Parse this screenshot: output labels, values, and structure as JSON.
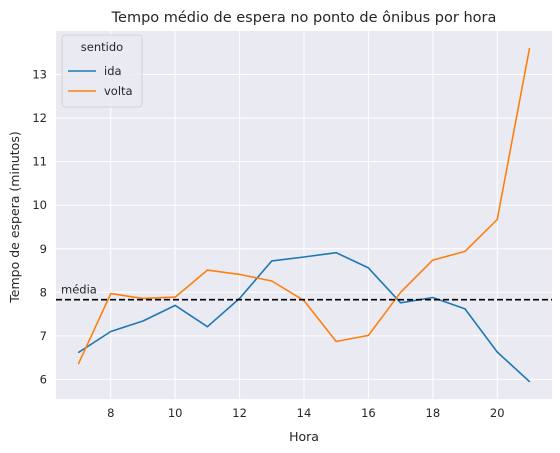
{
  "chart_data": {
    "type": "line",
    "title": "Tempo médio de espera no ponto de ônibus por hora",
    "xlabel": "Hora",
    "ylabel": "Tempo de espera (minutos)",
    "x": [
      7,
      8,
      9,
      10,
      11,
      12,
      13,
      14,
      15,
      16,
      17,
      18,
      19,
      20,
      21
    ],
    "xticks": [
      8,
      10,
      12,
      14,
      16,
      18,
      20
    ],
    "yticks": [
      6,
      7,
      8,
      9,
      10,
      11,
      12,
      13
    ],
    "xlim": [
      6.3,
      21.7
    ],
    "ylim": [
      5.55,
      14.0
    ],
    "grid": true,
    "legend": {
      "title": "sentido",
      "placement": "top-left"
    },
    "series": [
      {
        "name": "ida",
        "color": "#1f77b4",
        "values": [
          6.62,
          7.1,
          7.34,
          7.7,
          7.21,
          7.86,
          8.72,
          8.81,
          8.91,
          8.56,
          7.76,
          7.88,
          7.62,
          6.63,
          5.95
        ]
      },
      {
        "name": "volta",
        "color": "#ff7f0e",
        "values": [
          6.36,
          7.97,
          7.86,
          7.89,
          8.51,
          8.41,
          8.26,
          7.81,
          6.87,
          7.01,
          8.0,
          8.74,
          8.94,
          9.67,
          13.6
        ]
      }
    ],
    "reference_line": {
      "label": "média",
      "value": 7.83,
      "color": "#000000",
      "style": "dashed"
    },
    "background_color": "#eaeaf2"
  }
}
